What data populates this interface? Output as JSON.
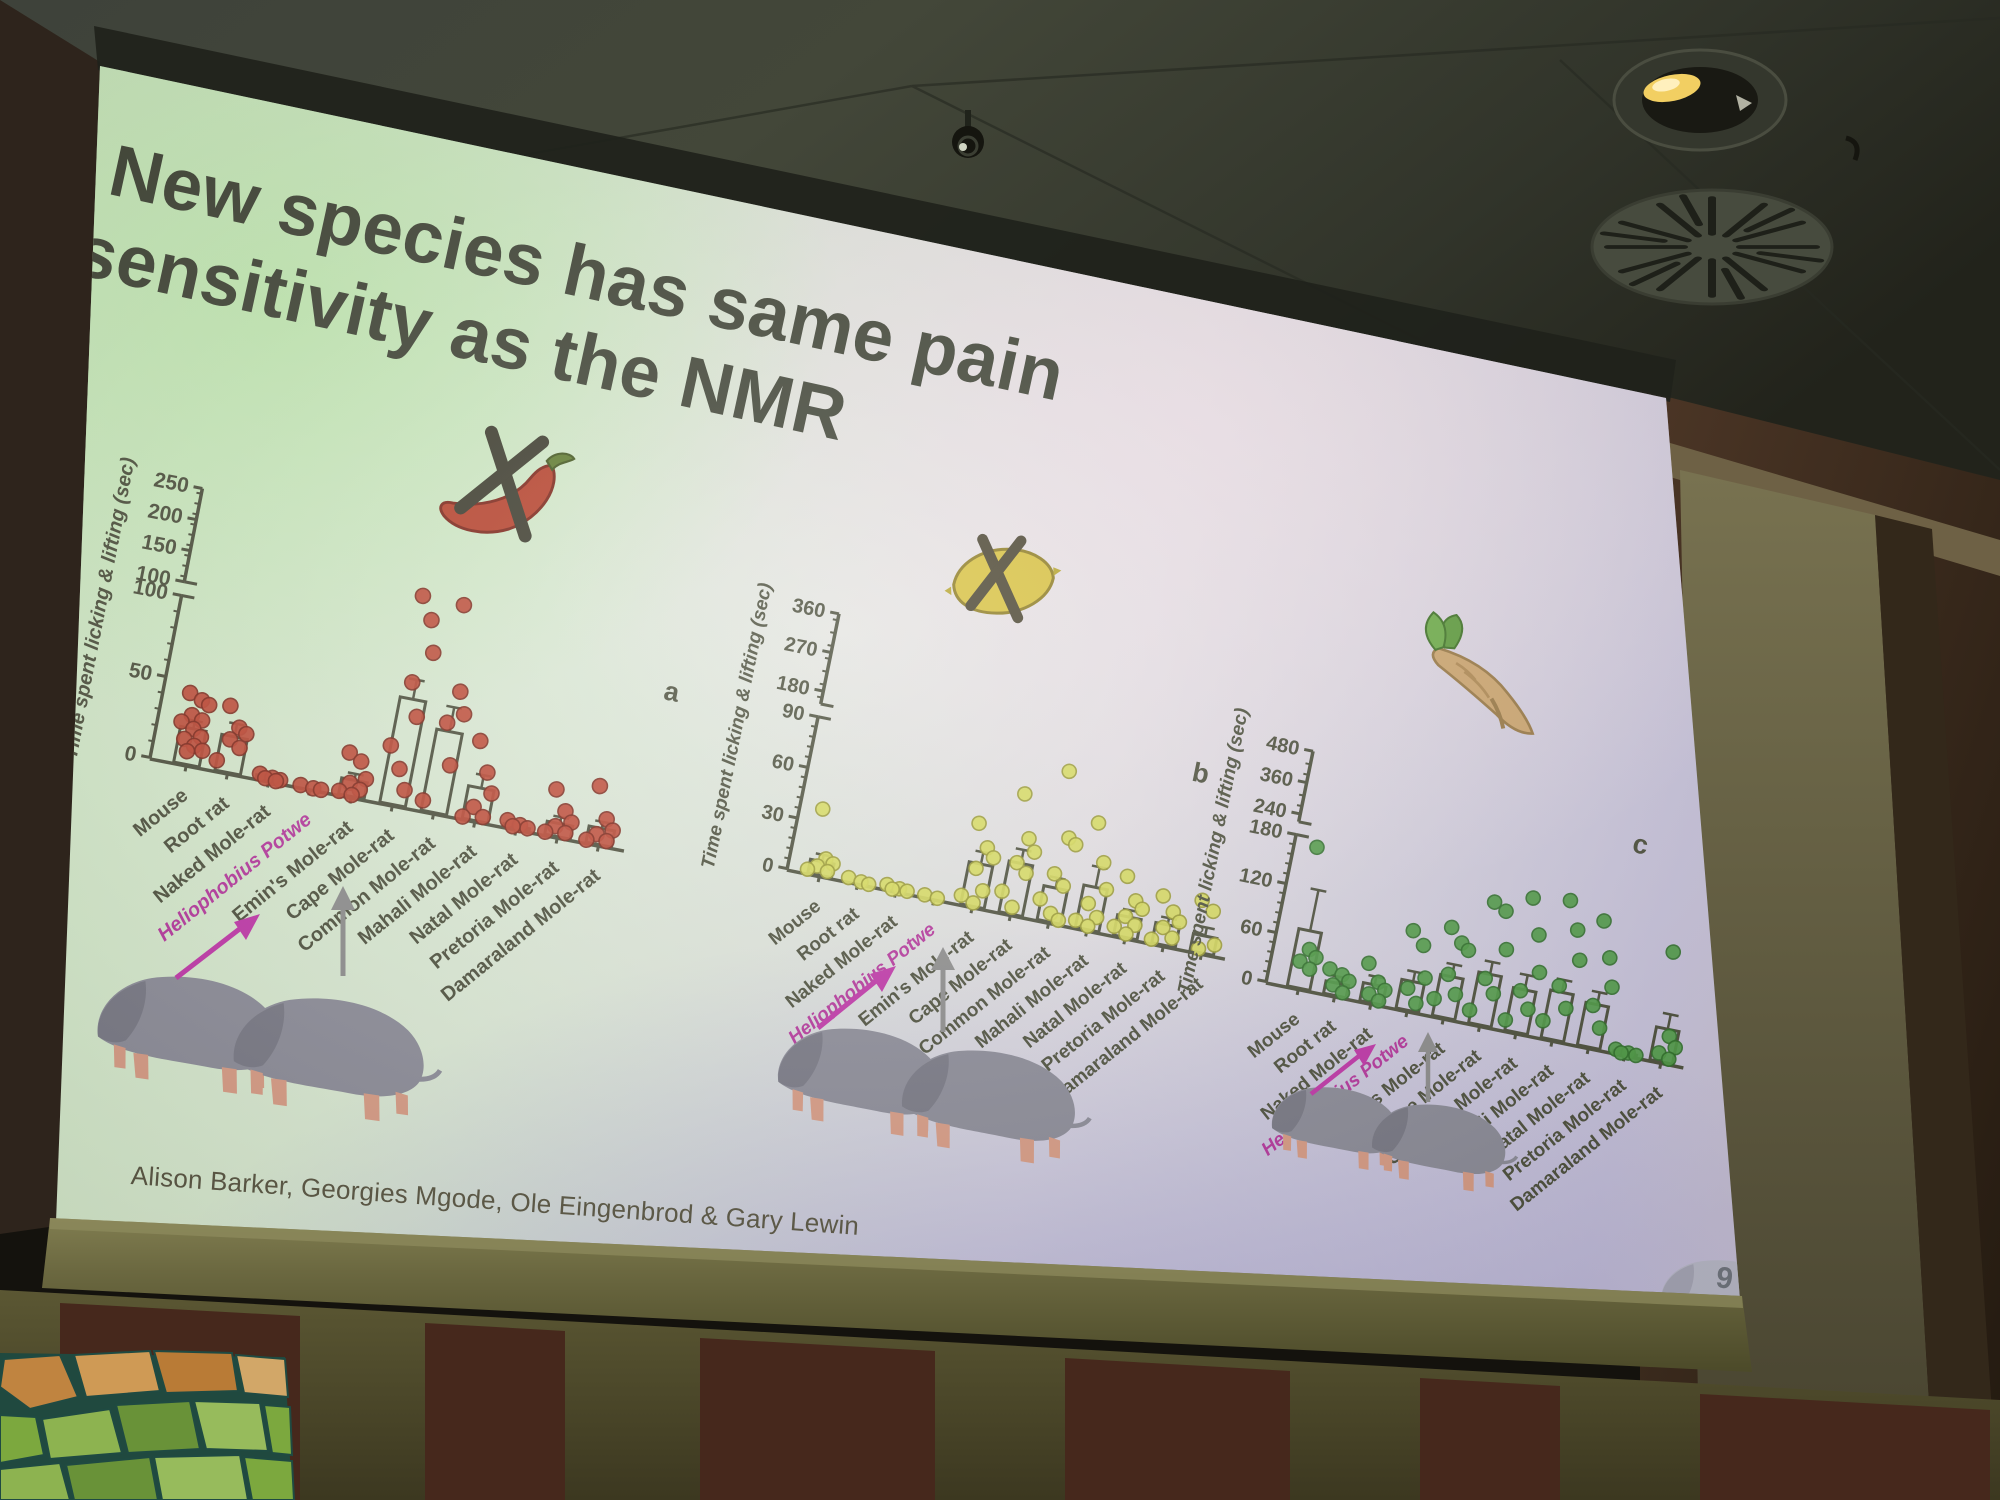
{
  "slide": {
    "title_lines": [
      "New species has same pain",
      "sensitivity as the NMR"
    ],
    "attribution": "Alison Barker, Georgies Mgode, Ole Eingenbrod & Gary Lewin",
    "page_number": "9",
    "highlight_species": "Heliophobius Potwe"
  },
  "colors": {
    "chart_ink": "#4a4d3a",
    "highlight": "#b5339c",
    "title_text": "#3e4234",
    "attribution_text": "#56523f",
    "capsaicin_fill": "#bf4430",
    "capsaicin_edge": "#7e2417",
    "acid_fill": "#d8dc5a",
    "acid_edge": "#99992e",
    "aitc_fill": "#4d9b44",
    "aitc_edge": "#2c6e27"
  },
  "icons": [
    "chili-pepper-crossed-out-icon",
    "lemon-crossed-out-icon",
    "horseradish-root-icon",
    "mole-rat-drawing",
    "ceiling-vent",
    "ceiling-spotlight",
    "security-camera"
  ],
  "chart_data": [
    {
      "type": "bar",
      "panel_label": "a",
      "stimulus_icon": "chili-pepper-crossed-out",
      "ylabel": "Time spent licking & lifting (sec)",
      "categories": [
        "Mouse",
        "Root rat",
        "Naked Mole-rat",
        "Heliophobius Potwe",
        "Emin's Mole-rat",
        "Cape Mole-rat",
        "Common Mole-rat",
        "Mahali Mole-rat",
        "Natal Mole-rat",
        "Pretoria Mole-rat",
        "Damaraland Mole-rat"
      ],
      "lower_range": [
        0,
        100
      ],
      "lower_ticks": [
        0,
        50,
        100
      ],
      "upper_range": [
        100,
        250
      ],
      "upper_ticks": [
        100,
        150,
        200,
        250
      ],
      "means": [
        22,
        22,
        2,
        0.5,
        10,
        65,
        50,
        20,
        1.5,
        8,
        10
      ],
      "errors": [
        5,
        8,
        1,
        0.5,
        4,
        12,
        15,
        8,
        1,
        4,
        4
      ],
      "points": [
        [
          43,
          40,
          38,
          30,
          28,
          25,
          22,
          18,
          15,
          12,
          10,
          8
        ],
        [
          40,
          28,
          25,
          20,
          16,
          6
        ],
        [
          3,
          2,
          1.5,
          1,
          0.5
        ],
        [
          1,
          0.5,
          0.5
        ],
        [
          26,
          22,
          12,
          8,
          5,
          2,
          1
        ],
        [
          150,
          115,
          95,
          75,
          55,
          35,
          22,
          10
        ],
        [
          148,
          75,
          62,
          55,
          30,
          6
        ],
        [
          48,
          30,
          18,
          8,
          3,
          1
        ],
        [
          4,
          2.5,
          1.5,
          1
        ],
        [
          28,
          16,
          10,
          6,
          3,
          1.5
        ],
        [
          35,
          16,
          10,
          6,
          3,
          1.5
        ]
      ],
      "point_fill": "capsaicin_fill",
      "point_edge": "capsaicin_edge"
    },
    {
      "type": "bar",
      "panel_label": "b",
      "stimulus_icon": "lemon-crossed-out",
      "ylabel": "Time spent licking & lifting (sec)",
      "categories": [
        "Mouse",
        "Root rat",
        "Naked Mole-rat",
        "Heliophobius Potwe",
        "Emin's Mole-rat",
        "Cape Mole-rat",
        "Common Mole-rat",
        "Mahali Mole-rat",
        "Natal Mole-rat",
        "Pretoria Mole-rat",
        "Damaraland Mole-rat"
      ],
      "lower_range": [
        0,
        90
      ],
      "lower_ticks": [
        0,
        30,
        60,
        90
      ],
      "upper_range": [
        150,
        360
      ],
      "upper_ticks": [
        180,
        270,
        360
      ],
      "means": [
        8,
        0.5,
        1,
        0.5,
        25,
        30,
        20,
        25,
        12,
        12,
        10
      ],
      "errors": [
        4,
        0.5,
        0.5,
        0.5,
        7,
        8,
        6,
        12,
        4,
        4,
        5
      ],
      "points": [
        [
          38,
          10,
          8,
          5,
          3,
          2
        ],
        [
          2,
          1,
          0.5
        ],
        [
          2.5,
          1.5,
          1,
          0.5
        ],
        [
          1,
          0.5
        ],
        [
          48,
          35,
          30,
          22,
          10,
          5,
          2
        ],
        [
          70,
          45,
          38,
          30,
          25,
          12,
          4
        ],
        [
          88,
          50,
          47,
          28,
          22,
          12,
          5,
          2
        ],
        [
          62,
          40,
          25,
          15,
          8,
          4,
          2
        ],
        [
          35,
          22,
          18,
          12,
          8,
          5,
          2
        ],
        [
          28,
          20,
          15,
          10,
          5,
          2
        ],
        [
          30,
          25,
          6,
          2
        ]
      ],
      "point_fill": "acid_fill",
      "point_edge": "acid_edge"
    },
    {
      "type": "bar",
      "panel_label": "c",
      "stimulus_icon": "horseradish-root",
      "ylabel": "Time spent licking & lifting (sec)",
      "categories": [
        "Mouse",
        "Root rat",
        "Naked Mole-rat",
        "Heliophobius Potwe",
        "Emin's Mole-rat",
        "Cape Mole-rat",
        "Common Mole-rat",
        "Mahali Mole-rat",
        "Natal Mole-rat",
        "Pretoria Mole-rat",
        "Damaraland Mole-rat"
      ],
      "lower_range": [
        0,
        180
      ],
      "lower_ticks": [
        0,
        60,
        120,
        180
      ],
      "upper_range": [
        210,
        480
      ],
      "upper_ticks": [
        240,
        360,
        480
      ],
      "means": [
        70,
        15,
        22,
        35,
        50,
        62,
        52,
        58,
        52,
        2,
        40
      ],
      "errors": [
        50,
        8,
        10,
        12,
        15,
        15,
        18,
        15,
        15,
        1,
        18
      ],
      "points": [
        [
          170,
          48,
          40,
          32,
          25
        ],
        [
          30,
          26,
          20,
          12,
          5
        ],
        [
          46,
          26,
          18,
          10,
          4
        ],
        [
          95,
          80,
          42,
          26,
          10
        ],
        [
          108,
          92,
          85,
          52,
          30,
          20
        ],
        [
          148,
          140,
          95,
          56,
          40,
          15
        ],
        [
          162,
          120,
          76,
          50,
          30,
          12
        ],
        [
          168,
          135,
          100,
          65,
          40,
          20
        ],
        [
          152,
          110,
          76,
          50,
          25
        ],
        [
          4,
          2.5,
          1.5,
          1
        ],
        [
          132,
          32,
          20,
          10,
          5
        ]
      ],
      "point_fill": "aitc_fill",
      "point_edge": "aitc_edge"
    }
  ]
}
